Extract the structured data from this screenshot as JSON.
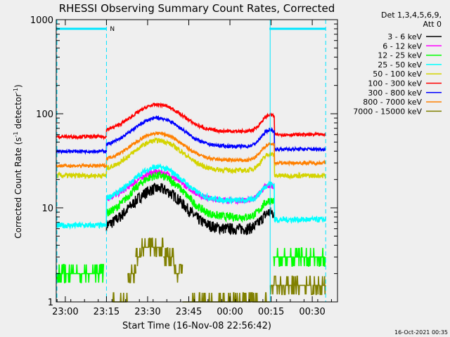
{
  "chart_data": {
    "type": "line",
    "title": "RHESSI Observing Summary Count Rates, Corrected",
    "xlabel": "Start Time (16-Nov-08 22:56:42)",
    "ylabel_main": "Corrected Count Rate (s",
    "ylabel_sup1": "-1",
    "ylabel_mid": " detector",
    "ylabel_sup2": "-1",
    "ylabel_end": ")",
    "yscale": "log",
    "ylim": [
      1,
      1000
    ],
    "xlim": [
      "22:56:42",
      "00:35:00"
    ],
    "x_tick_labels": [
      "23:00",
      "23:15",
      "23:30",
      "23:45",
      "00:00",
      "00:15",
      "00:30"
    ],
    "x_tick_minutes": [
      3.3,
      18.3,
      33.3,
      48.3,
      63.3,
      78.3,
      93.3
    ],
    "y_tick_labels": [
      "1",
      "10",
      "100",
      "1000"
    ],
    "y_tick_values": [
      1,
      10,
      100,
      1000
    ],
    "legend_header": [
      "Det 1,3,4,5,6,9,",
      "Att 0"
    ],
    "legend_position": "right",
    "timestamp": "16-Oct-2021 00:35",
    "night_marker": "N",
    "night_intervals": [
      [
        0,
        18.3
      ],
      [
        77.7,
        98.2
      ]
    ],
    "series": [
      {
        "name": "3 - 6 keV",
        "color": "#000000",
        "shape": "hump",
        "start": 18.3,
        "end": 79.5,
        "base": 6,
        "peak": 16,
        "noise": 0.14
      },
      {
        "name": "6 - 12 keV",
        "color": "#ff00ff",
        "shape": "hump",
        "start": 18.3,
        "end": 79.5,
        "base": 12,
        "peak": 24,
        "noise": 0.07,
        "plateau_after": 76,
        "plateau": 17
      },
      {
        "name": "12 - 25 keV",
        "color": "#00ff00",
        "shape": "hump",
        "start": 18.3,
        "end": 79.5,
        "base": 8,
        "peak": 22,
        "noise": 0.1
      },
      {
        "name": "25 - 50 keV",
        "color": "#00ffff",
        "shape": "hump",
        "start": 0,
        "end": 98.2,
        "base": 12,
        "peak": 27,
        "noise": 0.07,
        "pre_value": 6.5,
        "post_value": 7.5
      },
      {
        "name": "50 - 100 keV",
        "color": "#d4d400",
        "shape": "hump",
        "start": 0,
        "end": 98.2,
        "base": 25,
        "peak": 52,
        "noise": 0.06,
        "pre_value": 22,
        "post_value": 22
      },
      {
        "name": "100 - 300 keV",
        "color": "#ff0000",
        "shape": "hump",
        "start": 0,
        "end": 98.2,
        "base": 65,
        "peak": 125,
        "noise": 0.04,
        "pre_value": 57,
        "post_value": 60
      },
      {
        "name": "300 - 800 keV",
        "color": "#0000ff",
        "shape": "hump",
        "start": 0,
        "end": 98.2,
        "base": 45,
        "peak": 90,
        "noise": 0.04,
        "pre_value": 40,
        "post_value": 42
      },
      {
        "name": "800 - 7000 keV",
        "color": "#ff8000",
        "shape": "hump",
        "start": 0,
        "end": 98.2,
        "base": 32,
        "peak": 62,
        "noise": 0.04,
        "pre_value": 28,
        "post_value": 30
      },
      {
        "name": "7000 - 15000 keV",
        "color": "#808000",
        "shape": "step",
        "start": 20.5,
        "end": 98.2,
        "segments": [
          [
            20.5,
            26,
            1
          ],
          [
            26,
            29,
            2
          ],
          [
            29,
            31,
            3
          ],
          [
            31,
            39,
            3.8
          ],
          [
            39,
            43,
            3
          ],
          [
            43,
            46,
            2
          ],
          [
            46,
            78,
            1
          ],
          [
            78,
            98.2,
            1.5
          ]
        ]
      },
      {
        "name": "12 - 25 keV (attenuator-out)",
        "legend": false,
        "color": "#00ff00",
        "shape": "step",
        "start": 0,
        "end": 98.2,
        "segments": [
          [
            0,
            17.5,
            2
          ],
          [
            79,
            98.2,
            3
          ]
        ]
      }
    ]
  }
}
